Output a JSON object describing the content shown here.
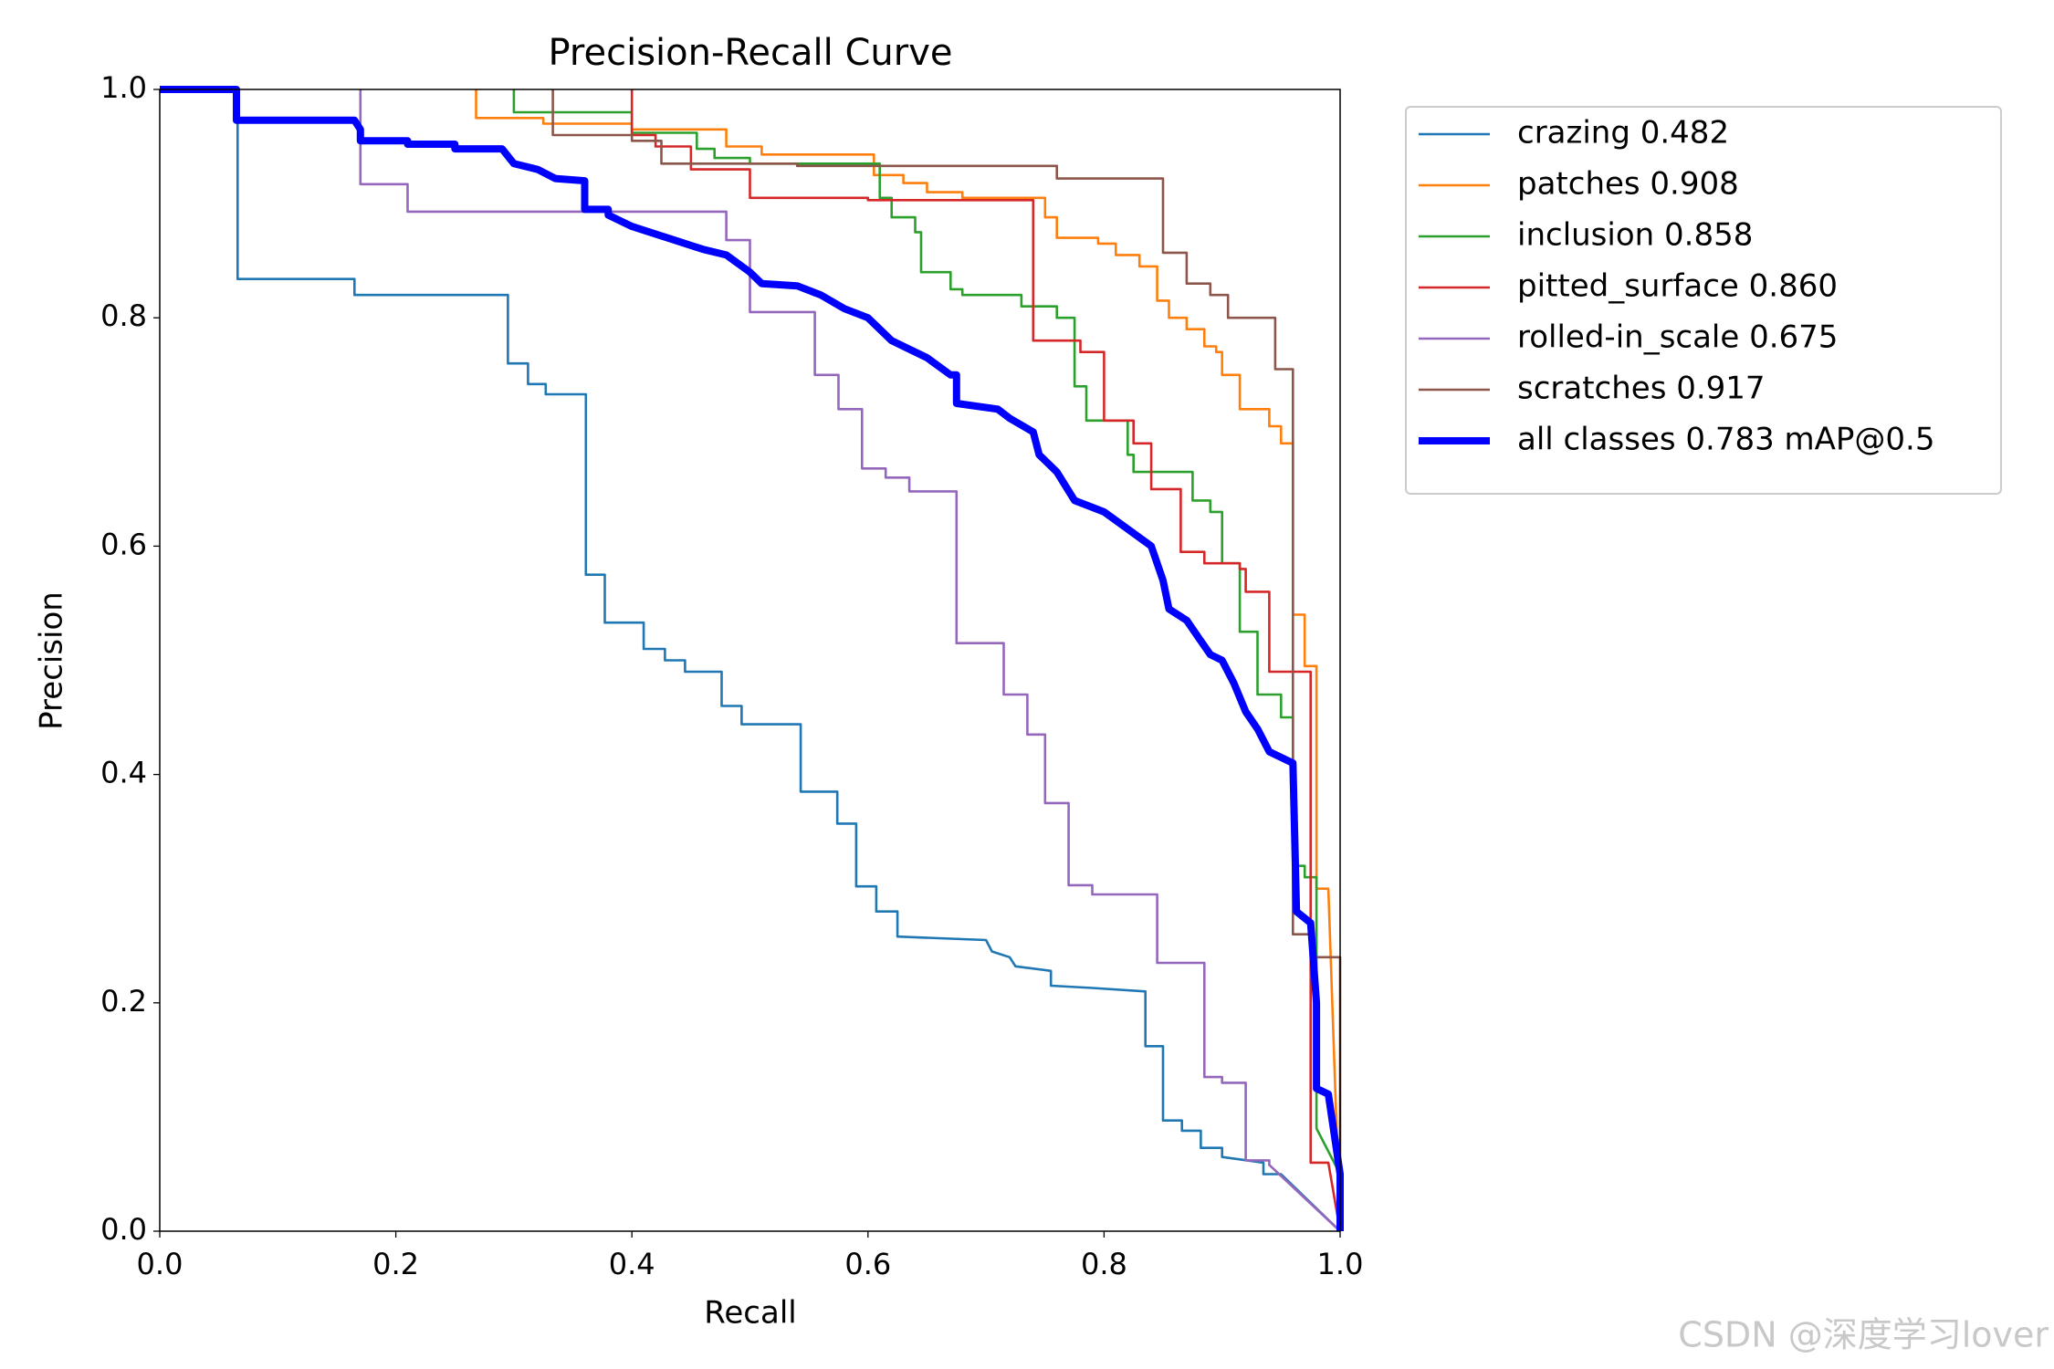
{
  "chart_data": {
    "type": "line",
    "title": "Precision-Recall Curve",
    "x_label": "Recall",
    "y_label": "Precision",
    "xlim": [
      0,
      1
    ],
    "ylim": [
      0,
      1
    ],
    "xticks": [
      {
        "value": 0,
        "label": "0.0"
      },
      0.2,
      0.4,
      0.6,
      0.8,
      {
        "value": 1,
        "label": "1.0"
      }
    ],
    "yticks": [
      {
        "value": 0,
        "label": "0.0"
      },
      0.2,
      0.4,
      0.6,
      0.8,
      {
        "value": 1,
        "label": "1.0"
      }
    ],
    "legend": "outside-upper-right",
    "watermark": "CSDN @深度学习lover",
    "series": [
      {
        "name": "crazing 0.482",
        "color": "#1f77b4",
        "width": 2.6,
        "x": [
          0,
          0.066,
          0.066,
          0.165,
          0.165,
          0.295,
          0.295,
          0.312,
          0.312,
          0.327,
          0.327,
          0.361,
          0.361,
          0.377,
          0.377,
          0.41,
          0.41,
          0.428,
          0.428,
          0.445,
          0.445,
          0.476,
          0.476,
          0.493,
          0.493,
          0.543,
          0.543,
          0.574,
          0.574,
          0.59,
          0.59,
          0.607,
          0.607,
          0.625,
          0.625,
          0.7,
          0.705,
          0.72,
          0.725,
          0.755,
          0.755,
          0.79,
          0.835,
          0.835,
          0.85,
          0.85,
          0.866,
          0.866,
          0.882,
          0.882,
          0.9,
          0.9,
          0.935,
          0.935,
          0.95,
          1
        ],
        "values": [
          1,
          1,
          0.834,
          0.834,
          0.82,
          0.82,
          0.76,
          0.76,
          0.742,
          0.742,
          0.733,
          0.733,
          0.575,
          0.575,
          0.533,
          0.533,
          0.51,
          0.51,
          0.5,
          0.5,
          0.49,
          0.49,
          0.46,
          0.46,
          0.444,
          0.444,
          0.385,
          0.385,
          0.357,
          0.357,
          0.302,
          0.302,
          0.28,
          0.28,
          0.258,
          0.255,
          0.245,
          0.24,
          0.232,
          0.228,
          0.215,
          0.213,
          0.21,
          0.162,
          0.162,
          0.097,
          0.097,
          0.088,
          0.088,
          0.073,
          0.073,
          0.065,
          0.06,
          0.05,
          0.05,
          0
        ]
      },
      {
        "name": "patches 0.908",
        "color": "#ff7f0e",
        "width": 2.6,
        "x": [
          0.268,
          0.268,
          0.325,
          0.325,
          0.4,
          0.4,
          0.48,
          0.48,
          0.51,
          0.51,
          0.605,
          0.605,
          0.63,
          0.63,
          0.65,
          0.65,
          0.68,
          0.68,
          0.75,
          0.75,
          0.76,
          0.76,
          0.795,
          0.795,
          0.81,
          0.81,
          0.83,
          0.83,
          0.845,
          0.845,
          0.855,
          0.855,
          0.87,
          0.87,
          0.885,
          0.885,
          0.895,
          0.895,
          0.9,
          0.9,
          0.915,
          0.915,
          0.94,
          0.94,
          0.95,
          0.95,
          0.96,
          0.96,
          0.97,
          0.97,
          0.98,
          0.98,
          0.99,
          1
        ],
        "values": [
          1,
          0.975,
          0.975,
          0.97,
          0.97,
          0.965,
          0.965,
          0.95,
          0.95,
          0.943,
          0.943,
          0.925,
          0.925,
          0.918,
          0.918,
          0.91,
          0.91,
          0.905,
          0.905,
          0.888,
          0.888,
          0.87,
          0.87,
          0.865,
          0.865,
          0.855,
          0.855,
          0.845,
          0.845,
          0.815,
          0.815,
          0.8,
          0.8,
          0.79,
          0.79,
          0.775,
          0.775,
          0.77,
          0.77,
          0.75,
          0.75,
          0.72,
          0.72,
          0.705,
          0.705,
          0.69,
          0.69,
          0.54,
          0.54,
          0.495,
          0.495,
          0.3,
          0.3,
          0
        ]
      },
      {
        "name": "inclusion 0.858",
        "color": "#2ca02c",
        "width": 2.6,
        "x": [
          0.3,
          0.3,
          0.4,
          0.4,
          0.455,
          0.455,
          0.47,
          0.47,
          0.5,
          0.5,
          0.61,
          0.61,
          0.62,
          0.62,
          0.64,
          0.64,
          0.645,
          0.645,
          0.67,
          0.67,
          0.68,
          0.68,
          0.73,
          0.73,
          0.76,
          0.76,
          0.775,
          0.775,
          0.785,
          0.785,
          0.82,
          0.82,
          0.825,
          0.825,
          0.875,
          0.875,
          0.89,
          0.89,
          0.9,
          0.9,
          0.915,
          0.915,
          0.93,
          0.93,
          0.95,
          0.95,
          0.96,
          0.96,
          0.97,
          0.97,
          0.98,
          0.98,
          1,
          1
        ],
        "values": [
          1,
          0.98,
          0.98,
          0.962,
          0.962,
          0.948,
          0.948,
          0.94,
          0.94,
          0.935,
          0.935,
          0.905,
          0.905,
          0.888,
          0.888,
          0.875,
          0.875,
          0.84,
          0.84,
          0.825,
          0.825,
          0.82,
          0.82,
          0.81,
          0.81,
          0.8,
          0.8,
          0.74,
          0.74,
          0.71,
          0.71,
          0.68,
          0.68,
          0.665,
          0.665,
          0.64,
          0.64,
          0.63,
          0.63,
          0.585,
          0.585,
          0.525,
          0.525,
          0.47,
          0.47,
          0.45,
          0.45,
          0.32,
          0.32,
          0.31,
          0.31,
          0.09,
          0.05,
          0
        ]
      },
      {
        "name": "pitted_surface 0.860",
        "color": "#d62728",
        "width": 2.6,
        "x": [
          0.4,
          0.4,
          0.42,
          0.42,
          0.45,
          0.45,
          0.5,
          0.5,
          0.6,
          0.6,
          0.74,
          0.74,
          0.74,
          0.78,
          0.78,
          0.8,
          0.8,
          0.825,
          0.825,
          0.84,
          0.84,
          0.865,
          0.865,
          0.885,
          0.885,
          0.915,
          0.915,
          0.92,
          0.92,
          0.94,
          0.94,
          0.975,
          0.975,
          0.99,
          1
        ],
        "values": [
          1,
          0.96,
          0.96,
          0.95,
          0.95,
          0.93,
          0.93,
          0.905,
          0.905,
          0.903,
          0.903,
          0.9,
          0.78,
          0.78,
          0.77,
          0.77,
          0.71,
          0.71,
          0.69,
          0.69,
          0.65,
          0.65,
          0.595,
          0.595,
          0.585,
          0.585,
          0.58,
          0.58,
          0.56,
          0.56,
          0.49,
          0.49,
          0.06,
          0.06,
          0
        ]
      },
      {
        "name": "rolled-in_scale 0.675",
        "color": "#9467bd",
        "width": 2.6,
        "x": [
          0.17,
          0.17,
          0.21,
          0.21,
          0.48,
          0.48,
          0.5,
          0.5,
          0.555,
          0.555,
          0.575,
          0.575,
          0.595,
          0.595,
          0.615,
          0.615,
          0.635,
          0.635,
          0.675,
          0.675,
          0.715,
          0.715,
          0.735,
          0.735,
          0.75,
          0.75,
          0.77,
          0.77,
          0.79,
          0.79,
          0.845,
          0.845,
          0.885,
          0.885,
          0.9,
          0.9,
          0.92,
          0.92,
          0.94,
          0.94,
          1
        ],
        "values": [
          1,
          0.917,
          0.917,
          0.893,
          0.893,
          0.868,
          0.868,
          0.805,
          0.805,
          0.75,
          0.75,
          0.72,
          0.72,
          0.668,
          0.668,
          0.66,
          0.66,
          0.648,
          0.648,
          0.515,
          0.515,
          0.47,
          0.47,
          0.435,
          0.435,
          0.375,
          0.375,
          0.303,
          0.303,
          0.295,
          0.295,
          0.235,
          0.235,
          0.135,
          0.135,
          0.13,
          0.13,
          0.062,
          0.062,
          0.058,
          0
        ]
      },
      {
        "name": "scratches 0.917",
        "color": "#8c564b",
        "width": 2.6,
        "x": [
          0.333,
          0.333,
          0.4,
          0.4,
          0.425,
          0.425,
          0.54,
          0.54,
          0.76,
          0.76,
          0.85,
          0.85,
          0.87,
          0.87,
          0.89,
          0.89,
          0.905,
          0.905,
          0.945,
          0.945,
          0.96,
          0.96,
          0.975,
          0.975,
          1,
          1
        ],
        "values": [
          1,
          0.96,
          0.96,
          0.955,
          0.955,
          0.935,
          0.935,
          0.933,
          0.933,
          0.922,
          0.922,
          0.857,
          0.857,
          0.83,
          0.83,
          0.82,
          0.82,
          0.8,
          0.8,
          0.755,
          0.755,
          0.26,
          0.26,
          0.24,
          0.24,
          0
        ]
      },
      {
        "name": "all classes 0.783 mAP@0.5",
        "color": "#0000ff",
        "width": 8,
        "x": [
          0,
          0.065,
          0.065,
          0.165,
          0.17,
          0.17,
          0.21,
          0.21,
          0.25,
          0.25,
          0.29,
          0.3,
          0.32,
          0.335,
          0.36,
          0.36,
          0.38,
          0.38,
          0.4,
          0.43,
          0.46,
          0.48,
          0.5,
          0.51,
          0.54,
          0.56,
          0.58,
          0.6,
          0.62,
          0.65,
          0.67,
          0.675,
          0.675,
          0.71,
          0.72,
          0.74,
          0.745,
          0.76,
          0.775,
          0.8,
          0.82,
          0.84,
          0.85,
          0.855,
          0.87,
          0.88,
          0.89,
          0.9,
          0.91,
          0.92,
          0.93,
          0.94,
          0.96,
          0.963,
          0.975,
          0.98,
          0.98,
          0.99,
          1,
          1
        ],
        "values": [
          1,
          1,
          0.973,
          0.973,
          0.965,
          0.955,
          0.955,
          0.952,
          0.952,
          0.948,
          0.948,
          0.935,
          0.93,
          0.922,
          0.92,
          0.895,
          0.895,
          0.89,
          0.88,
          0.87,
          0.86,
          0.855,
          0.84,
          0.83,
          0.828,
          0.82,
          0.808,
          0.8,
          0.78,
          0.765,
          0.75,
          0.75,
          0.725,
          0.72,
          0.712,
          0.7,
          0.68,
          0.665,
          0.64,
          0.63,
          0.615,
          0.6,
          0.57,
          0.545,
          0.535,
          0.52,
          0.505,
          0.5,
          0.48,
          0.455,
          0.44,
          0.42,
          0.41,
          0.28,
          0.27,
          0.2,
          0.125,
          0.12,
          0.05,
          0
        ]
      }
    ]
  }
}
